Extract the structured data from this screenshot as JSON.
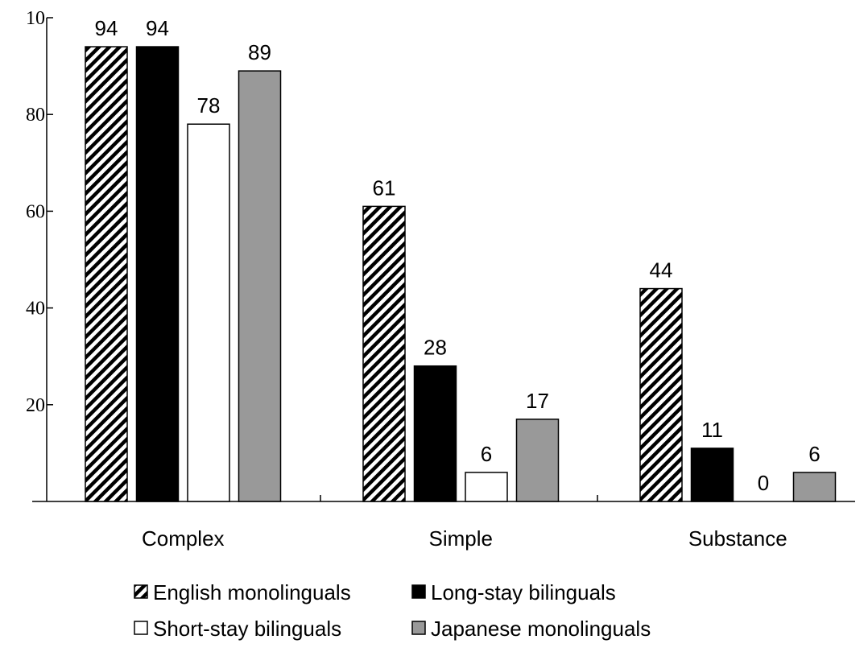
{
  "chart_data": {
    "type": "bar",
    "categories": [
      "Complex",
      "Simple",
      "Substance"
    ],
    "series": [
      {
        "name": "English monolinguals",
        "values": [
          94,
          61,
          44
        ],
        "fill": "hatch"
      },
      {
        "name": "Long-stay bilinguals",
        "values": [
          94,
          28,
          11
        ],
        "fill": "#000000"
      },
      {
        "name": "Short-stay bilinguals",
        "values": [
          78,
          6,
          0
        ],
        "fill": "#ffffff"
      },
      {
        "name": "Japanese monolinguals",
        "values": [
          89,
          17,
          6
        ],
        "fill": "#999999"
      }
    ],
    "yticks": [
      "20",
      "40",
      "60",
      "80",
      "10"
    ],
    "ylim": [
      0,
      100
    ],
    "legend_position": "bottom",
    "grid": false
  }
}
